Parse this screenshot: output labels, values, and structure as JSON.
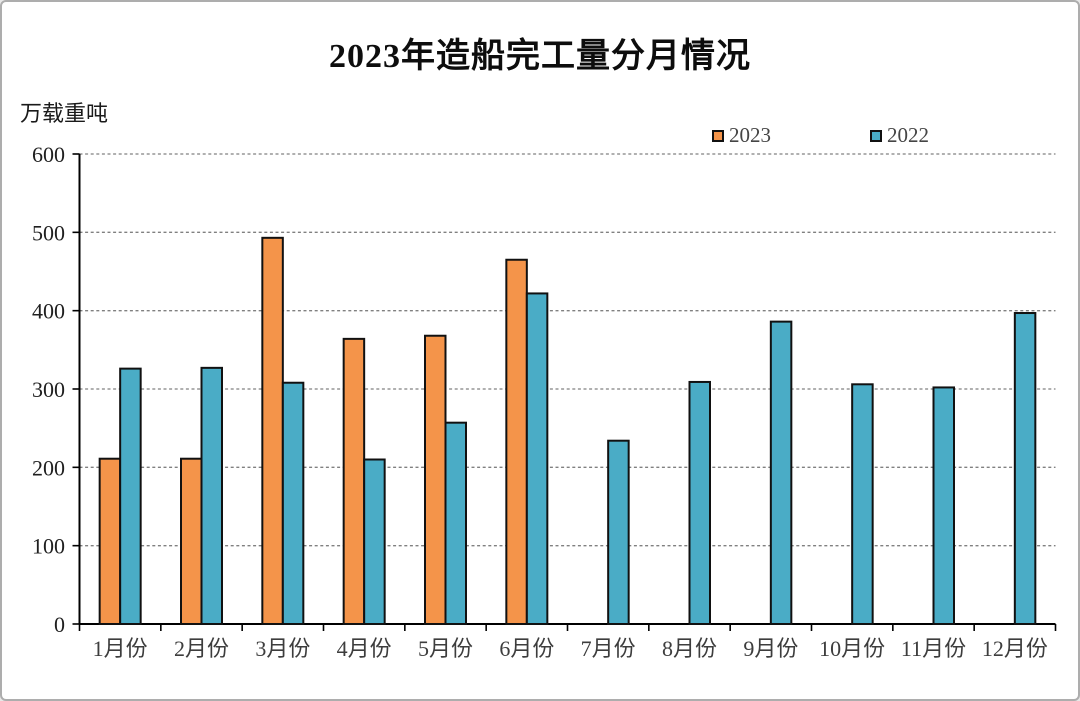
{
  "chart_data": {
    "type": "bar",
    "title": "2023年造船完工量分月情况",
    "unit_label": "万载重吨",
    "categories": [
      "1月份",
      "2月份",
      "3月份",
      "4月份",
      "5月份",
      "6月份",
      "7月份",
      "8月份",
      "9月份",
      "10月份",
      "11月份",
      "12月份"
    ],
    "series": [
      {
        "name": "2023",
        "color": "#F4944A",
        "values": [
          211,
          211,
          493,
          364,
          368,
          465,
          null,
          null,
          null,
          null,
          null,
          null
        ]
      },
      {
        "name": "2022",
        "color": "#4AACC6",
        "values": [
          326,
          327,
          308,
          210,
          257,
          422,
          234,
          309,
          386,
          306,
          302,
          397
        ]
      }
    ],
    "ylim": [
      0,
      600
    ],
    "yticks": [
      0,
      100,
      200,
      300,
      400,
      500,
      600
    ],
    "grid": "dashed horizontal",
    "legend_position": "top-right",
    "xlabel": "",
    "ylabel": "万载重吨",
    "bar_outline_color": "#111111",
    "gridline_color": "#808080",
    "axis_color": "#000000",
    "tick_label_color": "#1f1f1f",
    "month_label_color": "#3d3d3d"
  }
}
